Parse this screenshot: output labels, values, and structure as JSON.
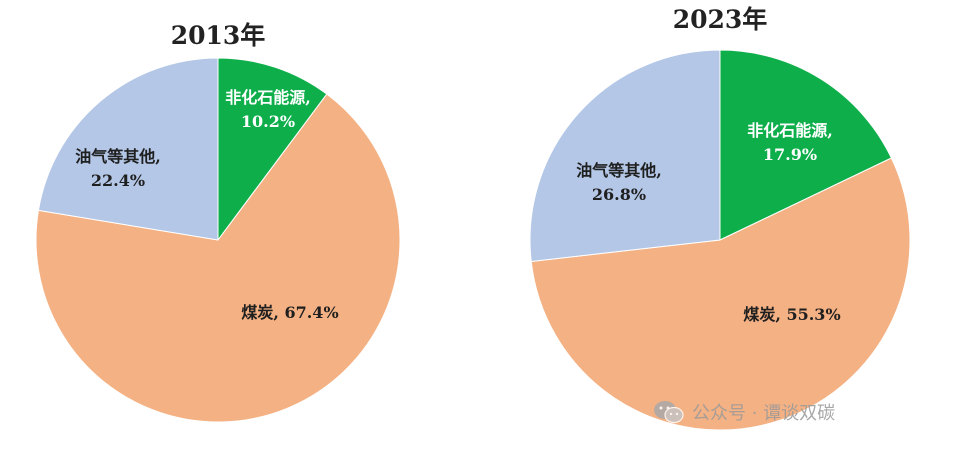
{
  "chart_data": [
    {
      "type": "pie",
      "title": "2013年",
      "slices": [
        {
          "label": "非化石能源",
          "value": 10.2,
          "display": "10.2%",
          "color": "#0eaf4b",
          "label_color": "#ffffff"
        },
        {
          "label": "煤炭",
          "value": 67.4,
          "display": "67.4%",
          "color": "#f4b183",
          "label_color": "#1f1f1f"
        },
        {
          "label": "油气等其他",
          "value": 22.4,
          "display": "22.4%",
          "color": "#b4c7e7",
          "label_color": "#1f1f1f"
        }
      ]
    },
    {
      "type": "pie",
      "title": "2023年",
      "slices": [
        {
          "label": "非化石能源",
          "value": 17.9,
          "display": "17.9%",
          "color": "#0eaf4b",
          "label_color": "#ffffff"
        },
        {
          "label": "煤炭",
          "value": 55.3,
          "display": "55.3%",
          "color": "#f4b183",
          "label_color": "#1f1f1f"
        },
        {
          "label": "油气等其他",
          "value": 26.8,
          "display": "26.8%",
          "color": "#b4c7e7",
          "label_color": "#1f1f1f"
        }
      ]
    }
  ],
  "watermark": {
    "text": "公众号 · 谭谈双碳",
    "icon": "wechat-icon"
  }
}
